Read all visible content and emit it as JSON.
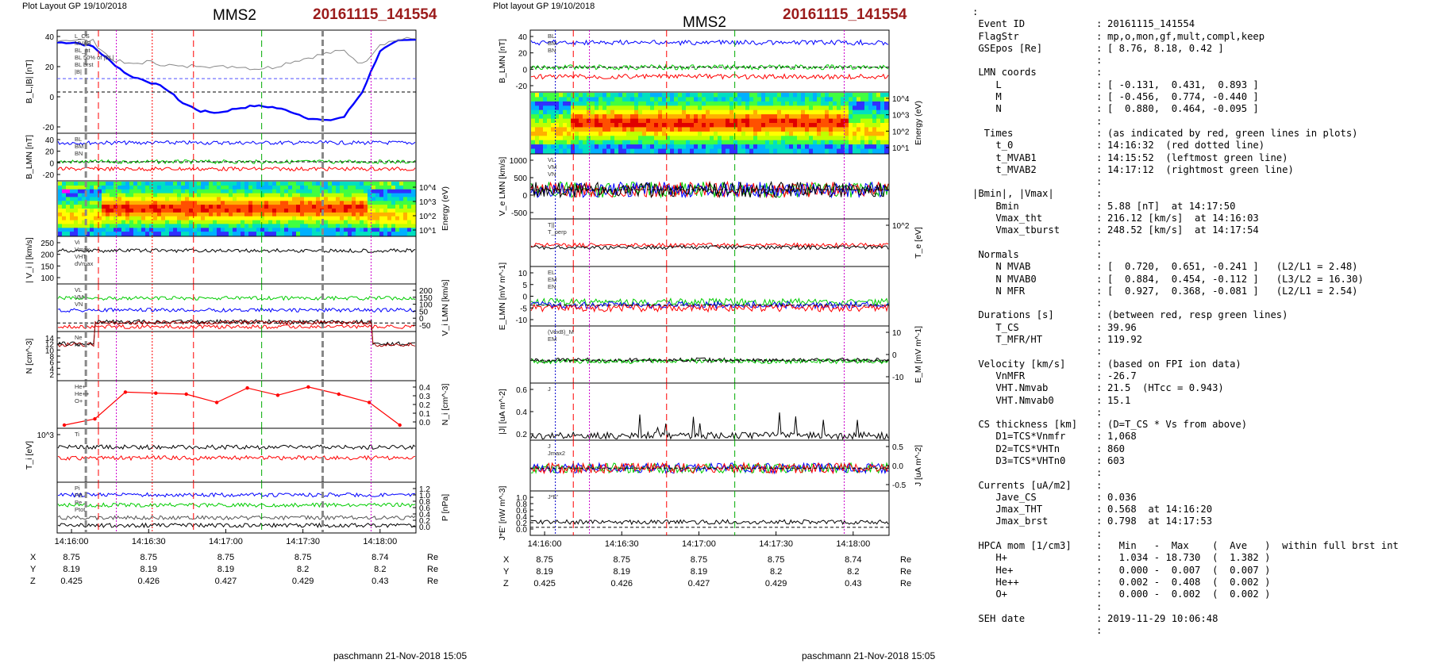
{
  "left_header": {
    "plot_info": "Plot Layout GP 19/10/2018",
    "spacecraft": "MMS2",
    "event": "20161115_141554"
  },
  "right_header": {
    "plot_info": "Plot layout GP 19/10/2018",
    "spacecraft": "MMS2",
    "event": "20161115_141554"
  },
  "left_footer": "paschmann 21-Nov-2018 15:05",
  "right_footer": "paschmann 21-Nov-2018 15:05",
  "colors": {
    "event": "#9b1b1b",
    "blue": "#0000ff",
    "red": "#ff0000",
    "green": "#00cc00",
    "black": "#000000",
    "gray": "#888888",
    "magenta": "#cc00cc"
  },
  "chart_data": [
    {
      "type": "line",
      "panel_set": "left",
      "x_ticks": [
        "14:16:00",
        "14:16:30",
        "14:17:00",
        "14:17:30",
        "14:18:00"
      ],
      "orbit_table": {
        "rows": [
          {
            "label": "X",
            "values": [
              "8.75",
              "8.75",
              "8.75",
              "8.75",
              "8.74"
            ],
            "unit": "Re"
          },
          {
            "label": "Y",
            "values": [
              "8.19",
              "8.19",
              "8.19",
              "8.2",
              "8.2"
            ],
            "unit": "Re"
          },
          {
            "label": "Z",
            "values": [
              "0.425",
              "0.426",
              "0.427",
              "0.429",
              "0.43"
            ],
            "unit": "Re"
          }
        ]
      },
      "panels": [
        {
          "id": "BL",
          "ylabel": "B_L,|B| [nT]",
          "yticks": [
            "40",
            "20",
            "0",
            "-20"
          ],
          "legend": [
            "L_CS",
            "MVAB",
            "BL_ht",
            "BL 50% of |BL|",
            "BL brst",
            "|B|"
          ],
          "series": [
            {
              "name": "BL brst",
              "color": "#0000ff",
              "values": [
                36,
                36,
                33,
                22,
                12,
                8,
                3,
                -8,
                -14,
                -15,
                -12,
                -10,
                -11,
                -14,
                -19,
                -21,
                -18,
                0,
                30,
                37,
                38
              ]
            },
            {
              "name": "|B|",
              "color": "#888888",
              "values": [
                38,
                38,
                37,
                24,
                20,
                22,
                20,
                18,
                20,
                18,
                19,
                17,
                18,
                22,
                25,
                28,
                30,
                20,
                35,
                38,
                39
              ]
            }
          ]
        },
        {
          "id": "BLMN",
          "ylabel": "B_LMN [nT]",
          "yticks": [
            "40",
            "20",
            "0",
            "-20"
          ],
          "legend": [
            "BL",
            "BM",
            "BN"
          ]
        },
        {
          "id": "EspecI",
          "ylabel": "Energy (eV)",
          "yticks": [
            "10^4",
            "10^3",
            "10^2",
            "10^1"
          ]
        },
        {
          "id": "Vi",
          "ylabel": "| V_i | [km/s]",
          "yticks": [
            "250",
            "200",
            "150",
            "100"
          ],
          "legend": [
            "Vi",
            "Vmax",
            "VHT",
            "dVmax"
          ]
        },
        {
          "id": "ViLMN",
          "ylabel": "V_i LMN [km/s]",
          "yticks": [
            "200",
            "150",
            "100",
            "50",
            "0",
            "-50"
          ],
          "legend": [
            "VL",
            "VM",
            "VN"
          ]
        },
        {
          "id": "N",
          "ylabel": "N [cm^-3]",
          "yticks": [
            "14",
            "12",
            "10",
            "8",
            "6",
            "4",
            "2"
          ],
          "legend": [
            "Ne",
            "Ni"
          ]
        },
        {
          "id": "Nhpca",
          "ylabel": "N_i [cm^-3]",
          "yticks": [
            "0.4",
            "0.3",
            "0.2",
            "0.1",
            "0.0"
          ],
          "legend": [
            "He+",
            "He++",
            "O+"
          ],
          "series": [
            {
              "name": "He++",
              "color": "#ff0000",
              "values": [
                0.0,
                0.06,
                0.32,
                0.31,
                0.3,
                0.22,
                0.36,
                0.29,
                0.37,
                0.3,
                0.22,
                0.0
              ]
            }
          ]
        },
        {
          "id": "Ti",
          "ylabel": "T_i [eV]",
          "yticks": [
            "10^3"
          ],
          "legend": [
            "Ti"
          ]
        },
        {
          "id": "P",
          "ylabel": "P [nPa]",
          "yticks": [
            "1.2",
            "1.0",
            "0.8",
            "0.6",
            "0.4",
            "0.2",
            "0.0"
          ],
          "legend": [
            "Pi",
            "PB",
            "Pe",
            "Ptot"
          ]
        }
      ]
    },
    {
      "type": "line",
      "panel_set": "right",
      "x_ticks": [
        "14:16:00",
        "14:16:30",
        "14:17:00",
        "14:17:30",
        "14:18:00"
      ],
      "orbit_table": {
        "rows": [
          {
            "label": "X",
            "values": [
              "8.75",
              "8.75",
              "8.75",
              "8.75",
              "8.74"
            ],
            "unit": "Re"
          },
          {
            "label": "Y",
            "values": [
              "8.19",
              "8.19",
              "8.19",
              "8.2",
              "8.2"
            ],
            "unit": "Re"
          },
          {
            "label": "Z",
            "values": [
              "0.425",
              "0.426",
              "0.427",
              "0.429",
              "0.43"
            ],
            "unit": "Re"
          }
        ]
      },
      "panels": [
        {
          "id": "BLMN",
          "ylabel": "B_LMN [nT]",
          "yticks": [
            "40",
            "20",
            "0",
            "-20"
          ],
          "legend": [
            "BL",
            "BM",
            "BN"
          ]
        },
        {
          "id": "EspecE",
          "ylabel": "Energy (eV)",
          "yticks": [
            "10^4",
            "10^3",
            "10^2",
            "10^1"
          ]
        },
        {
          "id": "Ve",
          "ylabel": "V_e LMN [km/s]",
          "yticks": [
            "1000",
            "500",
            "0",
            "-500"
          ],
          "legend": [
            "VL",
            "VM",
            "VN"
          ]
        },
        {
          "id": "Te",
          "ylabel": "T_e [eV]",
          "yticks": [
            "10^2"
          ],
          "legend": [
            "T||",
            "T_perp"
          ]
        },
        {
          "id": "ELMN",
          "ylabel": "E_LMN [mV m^-1]",
          "yticks": [
            "10",
            "5",
            "0",
            "-5",
            "-10"
          ],
          "legend": [
            "EL",
            "EM",
            "EN"
          ]
        },
        {
          "id": "EM",
          "ylabel": "E_M [mV m^-1]",
          "yticks": [
            "10",
            "0",
            "-10"
          ],
          "legend": [
            "(VexB)_M",
            "EM"
          ]
        },
        {
          "id": "J",
          "ylabel": "|J| [uA m^-2]",
          "yticks": [
            "0.6",
            "0.4",
            "0.2"
          ],
          "legend": [
            "J"
          ]
        },
        {
          "id": "JLMN",
          "ylabel": "J [uA m^-2]",
          "yticks": [
            "0.5",
            "0.0",
            "-0.5"
          ],
          "legend": [
            "J",
            "Jmax2"
          ]
        },
        {
          "id": "JE",
          "ylabel": "J*E' [nW m^-3]",
          "yticks": [
            "1.0",
            "0.8",
            "0.6",
            "0.4",
            "0.2",
            "0.0"
          ],
          "legend": [
            "J*E'"
          ]
        }
      ]
    }
  ],
  "summary": [
    {
      "k": ":",
      "v": ""
    },
    {
      "k": " Event ID",
      "v": "20161115_141554"
    },
    {
      "k": " FlagStr",
      "v": "mp,o,mon,gf,mult,compl,keep"
    },
    {
      "k": " GSEpos [Re]",
      "v": "[ 8.76, 8.18, 0.42 ]"
    },
    {
      "k": "",
      "v": ""
    },
    {
      "k": " LMN coords",
      "v": ""
    },
    {
      "k": "    L",
      "v": "[ -0.131,  0.431,  0.893 ]"
    },
    {
      "k": "    M",
      "v": "[ -0.456,  0.774, -0.440 ]"
    },
    {
      "k": "    N",
      "v": "[  0.880,  0.464, -0.095 ]"
    },
    {
      "k": "",
      "v": ""
    },
    {
      "k": "  Times",
      "v": "(as indicated by red, green lines in plots)"
    },
    {
      "k": "    t_0",
      "v": "14:16:32  (red dotted line)"
    },
    {
      "k": "    t_MVAB1",
      "v": "14:15:52  (leftmost green line)"
    },
    {
      "k": "    t_MVAB2",
      "v": "14:17:12  (rightmost green line)"
    },
    {
      "k": "",
      "v": ""
    },
    {
      "k": "|Bmin|, |Vmax|",
      "v": ""
    },
    {
      "k": "    Bmin",
      "v": "5.88 [nT]  at 14:17:50"
    },
    {
      "k": "    Vmax_tht",
      "v": "216.12 [km/s]  at 14:16:03"
    },
    {
      "k": "    Vmax_tburst",
      "v": "248.52 [km/s]  at 14:17:54"
    },
    {
      "k": "",
      "v": ""
    },
    {
      "k": " Normals",
      "v": ""
    },
    {
      "k": "    N MVAB",
      "v": "[  0.720,  0.651, -0.241 ]   (L2/L1 = 2.48)"
    },
    {
      "k": "    N MVAB0",
      "v": "[  0.884,  0.454, -0.112 ]   (L3/L2 = 16.30)"
    },
    {
      "k": "    N MFR",
      "v": "[  0.927,  0.368, -0.081 ]   (L2/L1 = 2.54)"
    },
    {
      "k": "",
      "v": ""
    },
    {
      "k": " Durations [s]",
      "v": "(between red, resp green lines)"
    },
    {
      "k": "    T_CS",
      "v": "39.96"
    },
    {
      "k": "    T_MFR/HT",
      "v": "119.92"
    },
    {
      "k": "",
      "v": ""
    },
    {
      "k": " Velocity [km/s]",
      "v": "(based on FPI ion data)"
    },
    {
      "k": "    VnMFR",
      "v": "-26.7"
    },
    {
      "k": "    VHT.Nmvab",
      "v": "21.5  (HTcc = 0.943)"
    },
    {
      "k": "    VHT.Nmvab0",
      "v": "15.1"
    },
    {
      "k": "",
      "v": ""
    },
    {
      "k": " CS thickness [km]",
      "v": "(D=T_CS * Vs from above)"
    },
    {
      "k": "    D1=TCS*Vnmfr",
      "v": "1,068"
    },
    {
      "k": "    D2=TCS*VHTn",
      "v": "860"
    },
    {
      "k": "    D3=TCS*VHTn0",
      "v": "603"
    },
    {
      "k": "",
      "v": ""
    },
    {
      "k": " Currents [uA/m2]",
      "v": ""
    },
    {
      "k": "    Jave_CS",
      "v": "0.036"
    },
    {
      "k": "    Jmax_THT",
      "v": "0.568  at 14:16:20"
    },
    {
      "k": "    Jmax_brst",
      "v": "0.798  at 14:17:53"
    },
    {
      "k": "",
      "v": ""
    },
    {
      "k": " HPCA mom [1/cm3]",
      "v": "  Min   -  Max    (  Ave   )  within full brst int"
    },
    {
      "k": "    H+",
      "v": "  1.034 - 18.730  (  1.382 )"
    },
    {
      "k": "    He+",
      "v": "  0.000 -  0.007  (  0.007 )"
    },
    {
      "k": "    He++",
      "v": "  0.002 -  0.408  (  0.002 )"
    },
    {
      "k": "    O+",
      "v": "  0.000 -  0.002  (  0.002 )"
    },
    {
      "k": "",
      "v": ""
    },
    {
      "k": " SEH date",
      "v": "2019-11-29 10:06:48"
    },
    {
      "k": "",
      "v": ""
    }
  ]
}
